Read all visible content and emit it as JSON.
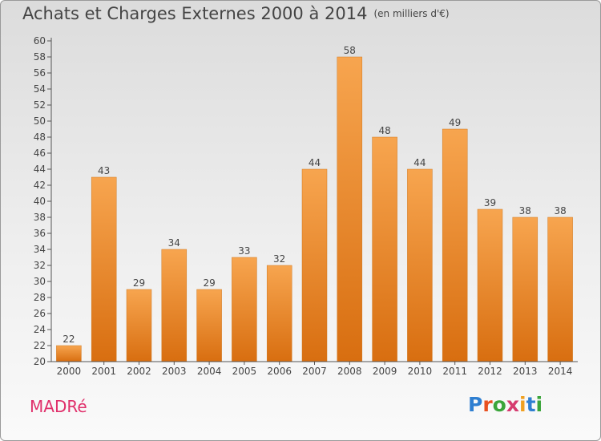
{
  "title": "Achats et Charges Externes 2000 à 2014",
  "subtitle": "(en milliers d'€)",
  "commune": "MADRé",
  "logo": {
    "text": "Proxiti",
    "letter_colors": [
      "#2f7fd1",
      "#e8501f",
      "#3aa53a",
      "#d63b6f",
      "#f0a020",
      "#2f7fd1",
      "#3aa53a"
    ]
  },
  "colors": {
    "bar_top": "#f7a54f",
    "bar_bottom": "#d86e10",
    "label": "#444444"
  },
  "chart_data": {
    "type": "bar",
    "categories": [
      "2000",
      "2001",
      "2002",
      "2003",
      "2004",
      "2005",
      "2006",
      "2007",
      "2008",
      "2009",
      "2010",
      "2011",
      "2012",
      "2013",
      "2014"
    ],
    "values": [
      22,
      43,
      29,
      34,
      29,
      33,
      32,
      44,
      58,
      48,
      44,
      49,
      39,
      38,
      38
    ],
    "ylim": [
      20,
      60
    ],
    "yticks": [
      20,
      22,
      24,
      26,
      28,
      30,
      32,
      34,
      36,
      38,
      40,
      42,
      44,
      46,
      48,
      50,
      52,
      54,
      56,
      58,
      60
    ],
    "grid": false,
    "data_labels": true
  }
}
